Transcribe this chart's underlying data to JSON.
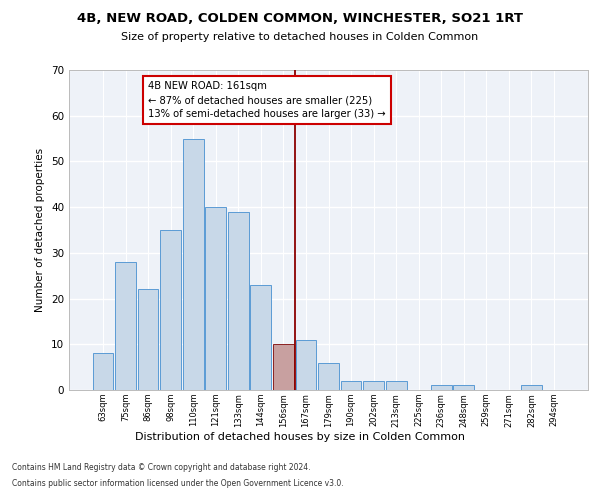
{
  "title": "4B, NEW ROAD, COLDEN COMMON, WINCHESTER, SO21 1RT",
  "subtitle": "Size of property relative to detached houses in Colden Common",
  "xlabel": "Distribution of detached houses by size in Colden Common",
  "ylabel": "Number of detached properties",
  "categories": [
    "63sqm",
    "75sqm",
    "86sqm",
    "98sqm",
    "110sqm",
    "121sqm",
    "133sqm",
    "144sqm",
    "156sqm",
    "167sqm",
    "179sqm",
    "190sqm",
    "202sqm",
    "213sqm",
    "225sqm",
    "236sqm",
    "248sqm",
    "259sqm",
    "271sqm",
    "282sqm",
    "294sqm"
  ],
  "values": [
    8,
    28,
    22,
    35,
    55,
    40,
    39,
    23,
    10,
    11,
    6,
    2,
    2,
    2,
    0,
    1,
    1,
    0,
    0,
    1,
    0
  ],
  "bar_color": "#c8d8e8",
  "bar_edgecolor": "#5b9bd5",
  "highlight_bar_index": 8,
  "highlight_bar_color": "#c8a0a0",
  "highlight_bar_edgecolor": "#8b2020",
  "vline_x": 8.5,
  "vline_color": "#8b0000",
  "annotation_text": "4B NEW ROAD: 161sqm\n← 87% of detached houses are smaller (225)\n13% of semi-detached houses are larger (33) →",
  "annotation_box_color": "#ffffff",
  "annotation_box_edgecolor": "#cc0000",
  "ylim": [
    0,
    70
  ],
  "yticks": [
    0,
    10,
    20,
    30,
    40,
    50,
    60,
    70
  ],
  "bg_color": "#eef2f8",
  "grid_color": "#ffffff",
  "footer_line1": "Contains HM Land Registry data © Crown copyright and database right 2024.",
  "footer_line2": "Contains public sector information licensed under the Open Government Licence v3.0."
}
